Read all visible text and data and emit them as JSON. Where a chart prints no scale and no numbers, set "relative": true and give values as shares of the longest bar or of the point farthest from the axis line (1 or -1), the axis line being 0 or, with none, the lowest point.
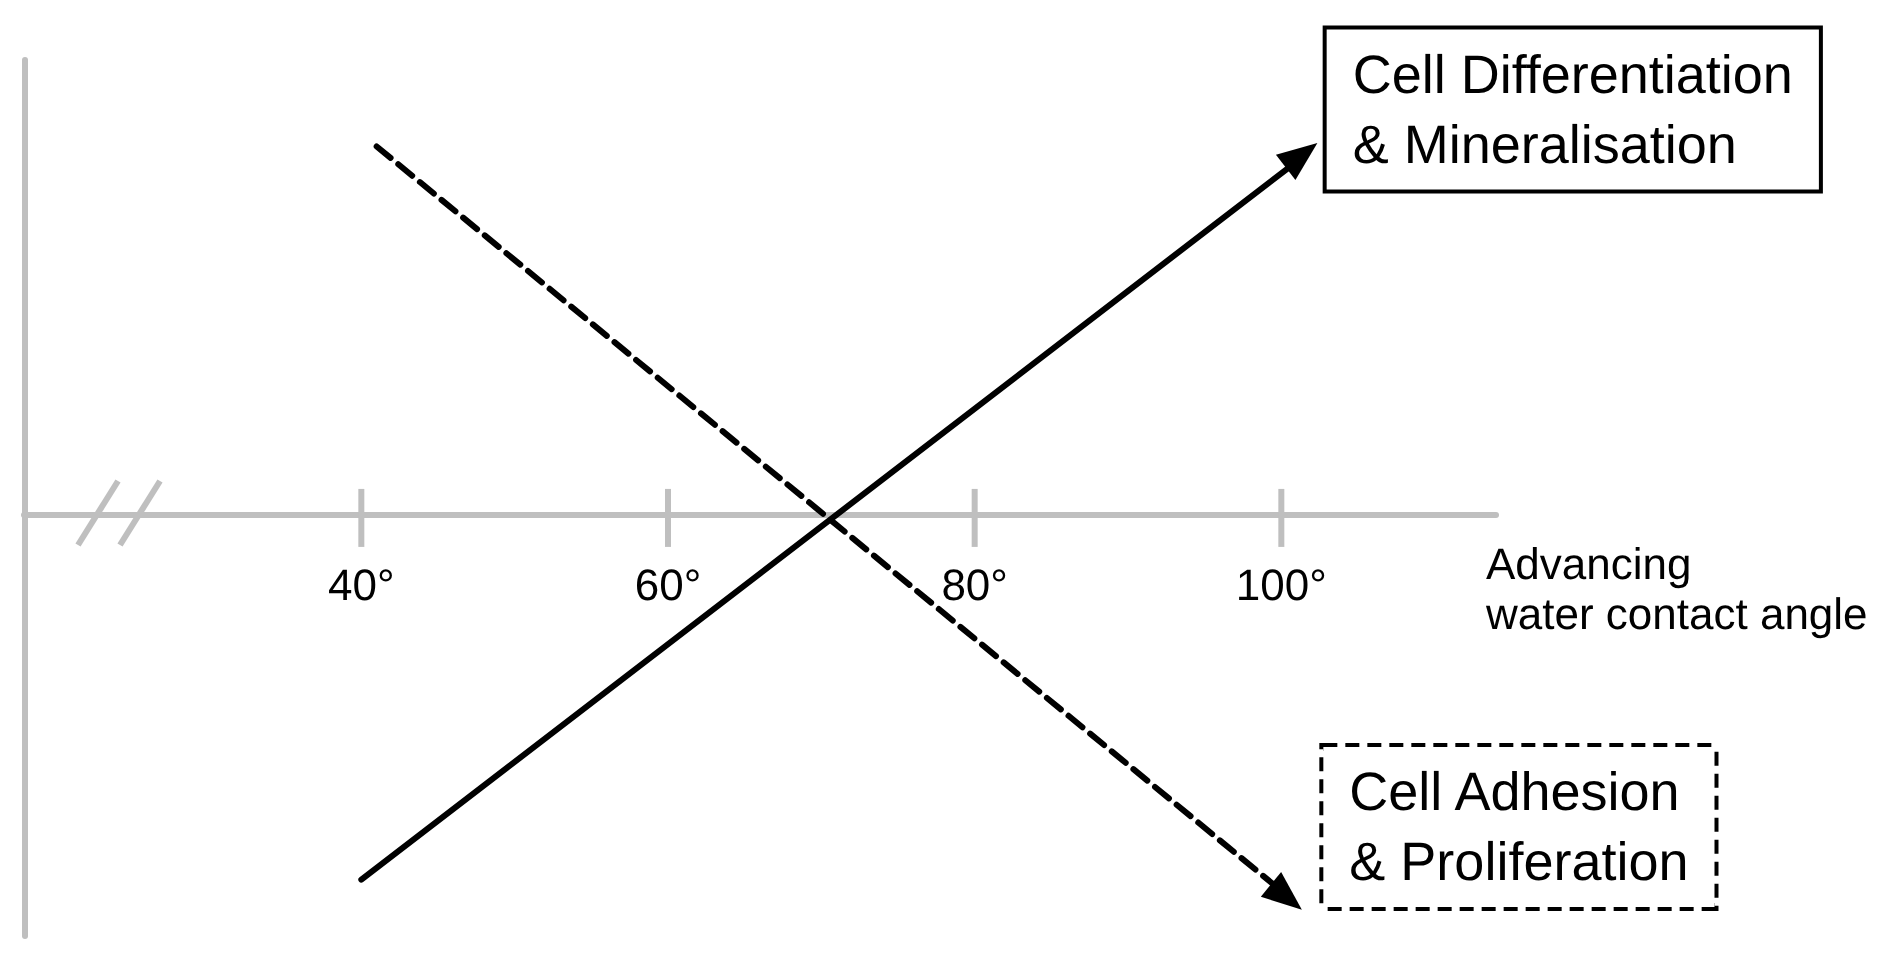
{
  "chart_data": {
    "type": "line",
    "relative": true,
    "xlabel": "Advancing\nwater contact angle",
    "xlim": [
      18,
      114
    ],
    "xticks": [
      {
        "value": 40,
        "label": "40°"
      },
      {
        "value": 60,
        "label": "60°"
      },
      {
        "value": 80,
        "label": "80°"
      },
      {
        "value": 100,
        "label": "100°"
      }
    ],
    "series": [
      {
        "name": "Cell Differentiation\n& Mineralisation",
        "color": "#000000",
        "line_style": "solid",
        "x": [
          40,
          101
        ],
        "values": [
          -0.97,
          0.94
        ]
      },
      {
        "name": "Cell Adhesion\n& Proliferation",
        "color": "#000000",
        "line_style": "dashed",
        "x": [
          41,
          100
        ],
        "values": [
          0.98,
          -1
        ]
      }
    ]
  }
}
